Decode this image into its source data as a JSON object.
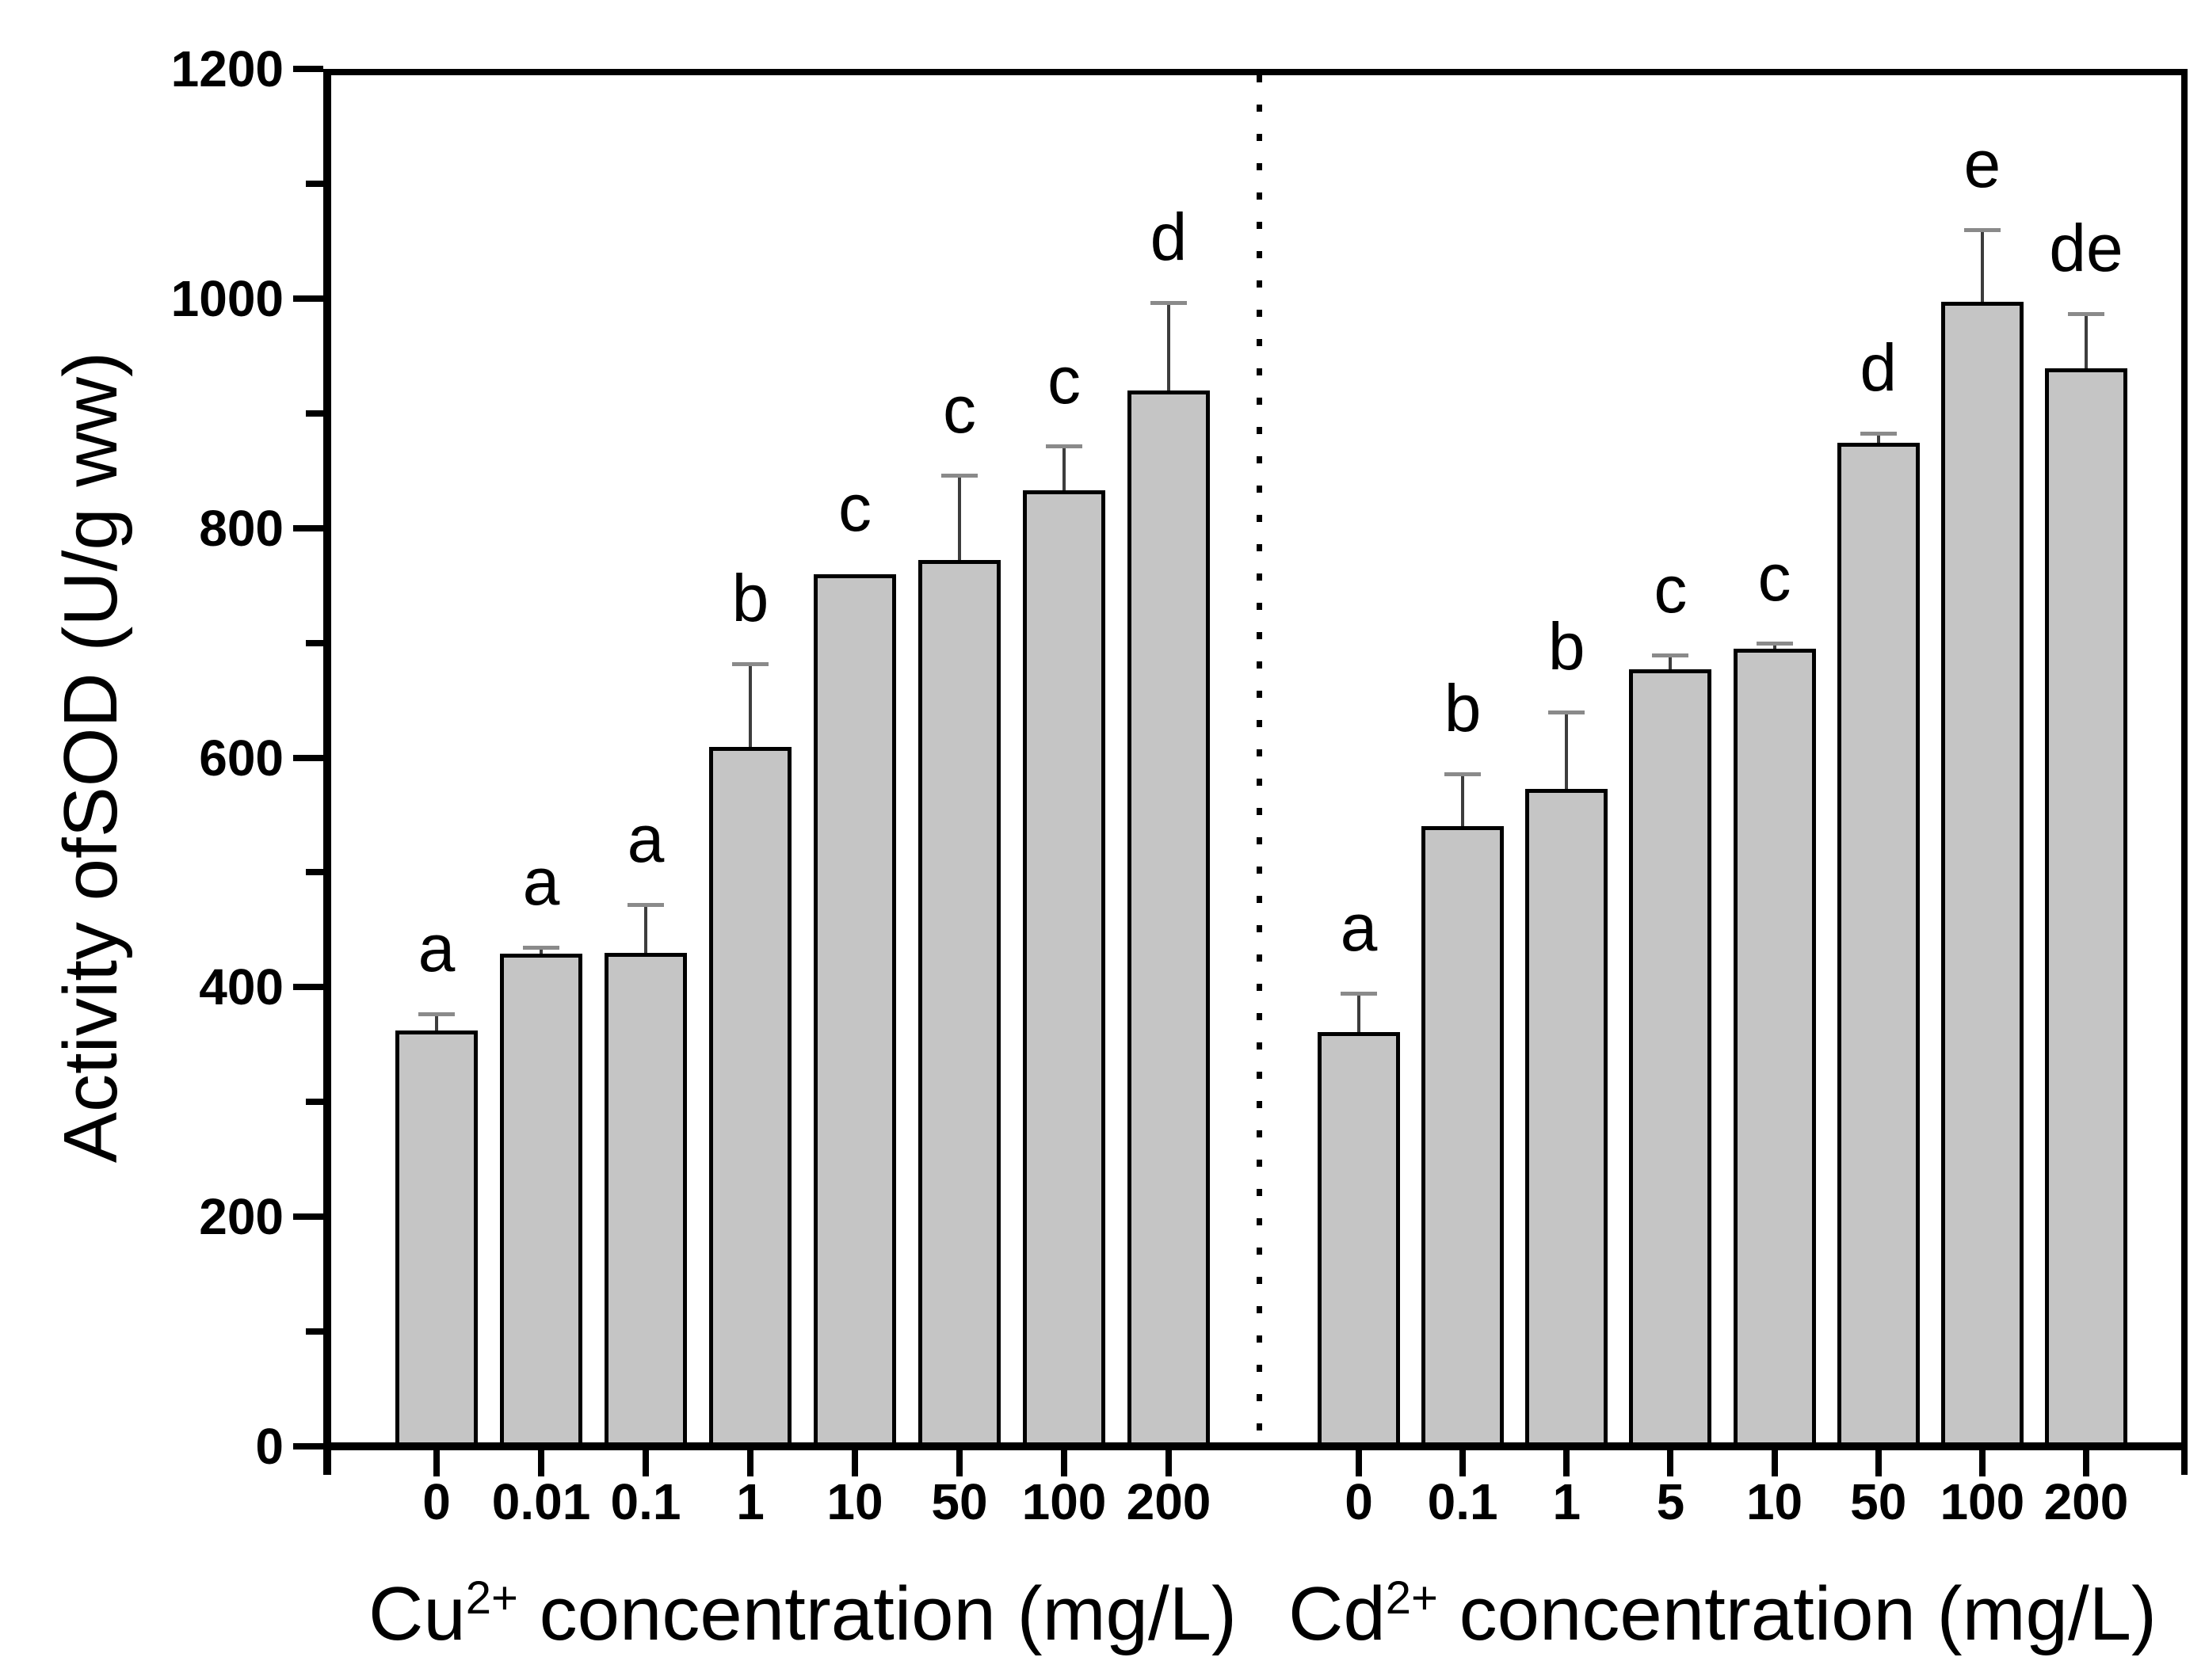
{
  "figure": {
    "kind": "two-panel bar chart",
    "background_color": "#ffffff",
    "bar_fill_color": "#c5c5c5",
    "bar_edge_color": "#000000",
    "error_bar_color": "#3d3d3d"
  },
  "y_axis": {
    "title": "Activity ofSOD (U/g ww)",
    "tick_labels": [
      "0",
      "200",
      "400",
      "600",
      "800",
      "1000",
      "1200"
    ],
    "major_tick_step": 200,
    "minor_tick_step": 100,
    "range": [
      0,
      1200
    ]
  },
  "divider": {
    "style": "dotted vertical line between panels"
  },
  "chart_data": [
    {
      "type": "bar",
      "panel": "left",
      "xlabel_base": "Cu",
      "xlabel_sup": "2+",
      "xlabel_rest": " concentration (mg/L)",
      "ylabel": "Activity ofSOD (U/g ww)",
      "categories": [
        "0",
        "0.01",
        "0.1",
        "1",
        "10",
        "50",
        "100",
        "200"
      ],
      "values": [
        362,
        429,
        430,
        609,
        760,
        772,
        833,
        920
      ],
      "errors_upper": [
        14,
        5,
        41,
        72,
        0,
        73,
        38,
        76
      ],
      "sig_letters": [
        "a",
        "a",
        "a",
        "b",
        "c",
        "c",
        "c",
        "d"
      ],
      "ylim": [
        0,
        1200
      ],
      "grid": "off",
      "legend": "none"
    },
    {
      "type": "bar",
      "panel": "right",
      "xlabel_base": "Cd",
      "xlabel_sup": "2+",
      "xlabel_rest": " concentration (mg/L)",
      "ylabel": "Activity ofSOD (U/g ww)",
      "categories": [
        "0",
        "0.1",
        "1",
        "5",
        "10",
        "50",
        "100",
        "200"
      ],
      "values": [
        361,
        540,
        573,
        677,
        695,
        874,
        997,
        939
      ],
      "errors_upper": [
        33,
        45,
        66,
        12,
        4,
        8,
        62,
        47
      ],
      "sig_letters": [
        "a",
        "b",
        "b",
        "c",
        "c",
        "d",
        "e",
        "de"
      ],
      "ylim": [
        0,
        1200
      ],
      "grid": "off",
      "legend": "none"
    }
  ]
}
